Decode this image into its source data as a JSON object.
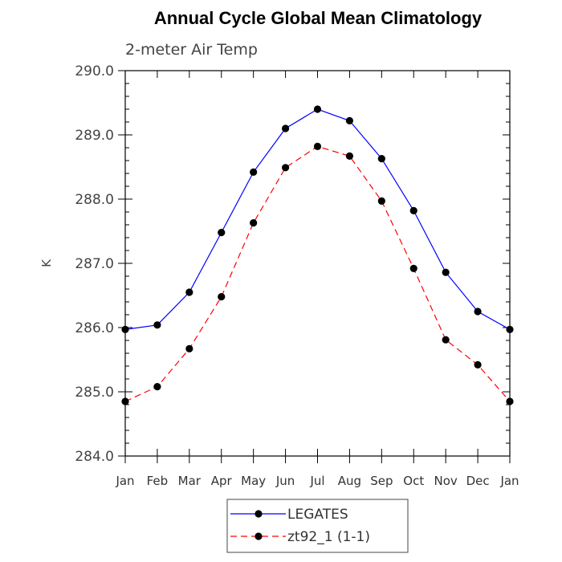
{
  "chart_data": {
    "type": "line",
    "title": "Annual Cycle Global Mean Climatology",
    "subtitle": "2-meter Air Temp",
    "ylabel": "K",
    "xlabel": "",
    "ylim": [
      284.0,
      290.0
    ],
    "yticks": [
      "284.0",
      "285.0",
      "286.0",
      "287.0",
      "288.0",
      "289.0",
      "290.0"
    ],
    "categories": [
      "Jan",
      "Feb",
      "Mar",
      "Apr",
      "May",
      "Jun",
      "Jul",
      "Aug",
      "Sep",
      "Oct",
      "Nov",
      "Dec",
      "Jan"
    ],
    "series": [
      {
        "name": "LEGATES",
        "color": "#0000ff",
        "dash": "solid",
        "values": [
          285.97,
          286.04,
          286.55,
          287.48,
          288.42,
          289.1,
          289.4,
          289.22,
          288.63,
          287.82,
          286.86,
          286.25,
          285.97
        ]
      },
      {
        "name": "zt92_1 (1-1)",
        "color": "#ff0000",
        "dash": "dashed",
        "values": [
          284.85,
          285.08,
          285.67,
          286.48,
          287.63,
          288.49,
          288.82,
          288.67,
          287.97,
          286.92,
          285.81,
          285.42,
          284.85
        ]
      }
    ],
    "grid": false,
    "legend_position": "bottom"
  }
}
